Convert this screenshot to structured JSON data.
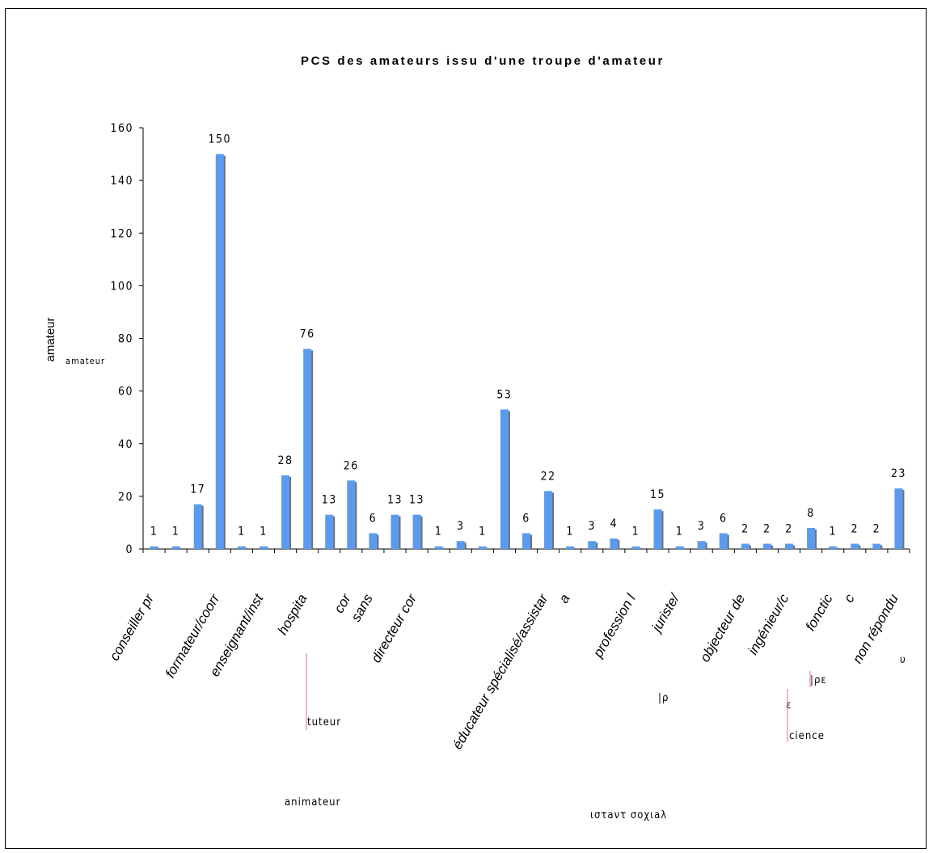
{
  "chart_data": {
    "type": "bar",
    "title": "PCS des amateurs issu d'une troupe d'amateur",
    "ylabel": "amateur",
    "ylabel_secondary": "amateur",
    "xlabel": "",
    "ylim": [
      0,
      160
    ],
    "yticks": [
      0,
      20,
      40,
      60,
      80,
      100,
      120,
      140,
      160
    ],
    "grid": false,
    "legend": "none",
    "bar_color": "#5b9bef",
    "shadow_color": "#707070",
    "values": [
      1,
      1,
      17,
      150,
      1,
      1,
      28,
      76,
      13,
      26,
      6,
      13,
      13,
      1,
      3,
      1,
      53,
      6,
      22,
      1,
      3,
      4,
      1,
      15,
      1,
      3,
      6,
      2,
      2,
      2,
      8,
      1,
      2,
      2,
      23
    ],
    "category_labels_visible": [
      {
        "bar": 0,
        "text": "conseiller pr"
      },
      {
        "bar": 3,
        "text": "formateur/coorr"
      },
      {
        "bar": 5,
        "text": "enseignant/inst"
      },
      {
        "bar": 7,
        "text": "hospita"
      },
      {
        "bar": 9,
        "text": "cor"
      },
      {
        "bar": 10,
        "text": "sans"
      },
      {
        "bar": 12,
        "text": "directeur cor"
      },
      {
        "bar": 18,
        "text": "éducateur spécialisé/assistar"
      },
      {
        "bar": 19,
        "text": "a"
      },
      {
        "bar": 22,
        "text": "profession l"
      },
      {
        "bar": 24,
        "text": "juriste/"
      },
      {
        "bar": 27,
        "text": "objecteur de"
      },
      {
        "bar": 29,
        "text": "ingénieur/c"
      },
      {
        "bar": 31,
        "text": "fonctic"
      },
      {
        "bar": 32,
        "text": "c"
      },
      {
        "bar": 34,
        "text": "non répondu"
      }
    ],
    "fragments": [
      {
        "text": "tuteur"
      },
      {
        "text": "animateur"
      },
      {
        "text": "ιστaντ σοχιaλ"
      },
      {
        "text": "|ρ"
      },
      {
        "text": "|ρε"
      },
      {
        "text": "cience"
      },
      {
        "text": "ε"
      },
      {
        "text": "υ"
      }
    ]
  }
}
